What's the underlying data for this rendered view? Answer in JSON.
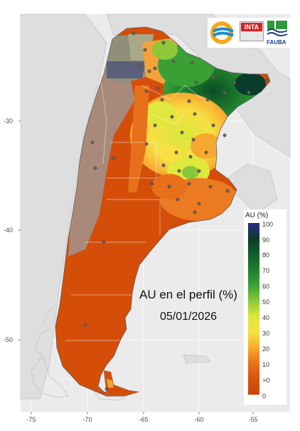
{
  "map": {
    "title": "AU en el perfil (%)",
    "date": "05/01/2026",
    "x_axis": {
      "ticks": [
        "-75",
        "-70",
        "-65",
        "-60",
        "-55"
      ]
    },
    "y_axis": {
      "ticks": [
        "-30",
        "-40",
        "-50"
      ]
    },
    "lon_range": [
      -76.5,
      -52.5
    ],
    "lat_range": [
      -56.5,
      -21.5
    ]
  },
  "legend": {
    "title": "AU (%)",
    "labels": [
      "100",
      "90",
      "80",
      "70",
      "60",
      "50",
      "40",
      "30",
      "20",
      "10",
      ">0",
      "0"
    ],
    "colors": [
      "#2e2a8c",
      "#0b3b2a",
      "#0f5c2c",
      "#1e7d2e",
      "#3aa035",
      "#86c83a",
      "#dfe83c",
      "#f7df44",
      "#f7a82f",
      "#e8701b",
      "#d8540c",
      "#cc4508"
    ]
  },
  "logos": {
    "inta": "INTA",
    "fauba": "FAUBA",
    "items": [
      "inta-circular-logo",
      "inta-logo",
      "fauba-logo"
    ]
  },
  "colors": {
    "panel_background": "#ebebeb",
    "grid": "#ffffff",
    "neighbor_land": "#dcdcdc",
    "patagonia_dry": "#d44e0a",
    "andes_grey": "#a98a7a"
  }
}
